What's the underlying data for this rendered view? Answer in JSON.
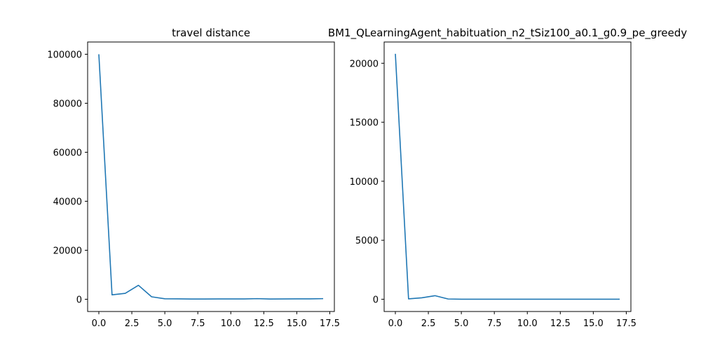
{
  "chart_data": [
    {
      "type": "line",
      "title": "travel distance",
      "xlabel": "",
      "ylabel": "",
      "xlim": [
        -0.85,
        17.85
      ],
      "ylim": [
        -5000,
        105000
      ],
      "xticks": [
        0.0,
        2.5,
        5.0,
        7.5,
        10.0,
        12.5,
        15.0,
        17.5
      ],
      "xtick_labels": [
        "0.0",
        "2.5",
        "5.0",
        "7.5",
        "10.0",
        "12.5",
        "15.0",
        "17.5"
      ],
      "yticks": [
        0,
        20000,
        40000,
        60000,
        80000,
        100000
      ],
      "ytick_labels": [
        "0",
        "20000",
        "40000",
        "60000",
        "80000",
        "100000"
      ],
      "grid": false,
      "series": [
        {
          "color": "#1f77b4",
          "x": [
            0,
            1,
            2,
            3,
            4,
            5,
            6,
            7,
            8,
            9,
            10,
            11,
            12,
            13,
            14,
            15,
            16,
            17
          ],
          "y": [
            100000,
            1800,
            2400,
            5700,
            1000,
            200,
            150,
            100,
            100,
            120,
            120,
            120,
            250,
            100,
            120,
            150,
            150,
            250
          ]
        }
      ]
    },
    {
      "type": "line",
      "title": "BM1_QLearningAgent_habituation_n2_tSiz100_a0.1_g0.9_pe_greedy",
      "xlabel": "",
      "ylabel": "",
      "xlim": [
        -0.85,
        17.85
      ],
      "ylim": [
        -1040,
        21800
      ],
      "xticks": [
        0.0,
        2.5,
        5.0,
        7.5,
        10.0,
        12.5,
        15.0,
        17.5
      ],
      "xtick_labels": [
        "0.0",
        "2.5",
        "5.0",
        "7.5",
        "10.0",
        "12.5",
        "15.0",
        "17.5"
      ],
      "yticks": [
        0,
        5000,
        10000,
        15000,
        20000
      ],
      "ytick_labels": [
        "0",
        "5000",
        "10000",
        "15000",
        "20000"
      ],
      "grid": false,
      "series": [
        {
          "color": "#1f77b4",
          "x": [
            0,
            1,
            2,
            3,
            4,
            5,
            6,
            7,
            8,
            9,
            10,
            11,
            12,
            13,
            14,
            15,
            16,
            17
          ],
          "y": [
            20800,
            30,
            120,
            300,
            20,
            5,
            5,
            5,
            5,
            5,
            5,
            5,
            5,
            5,
            5,
            5,
            5,
            5
          ]
        }
      ]
    }
  ]
}
